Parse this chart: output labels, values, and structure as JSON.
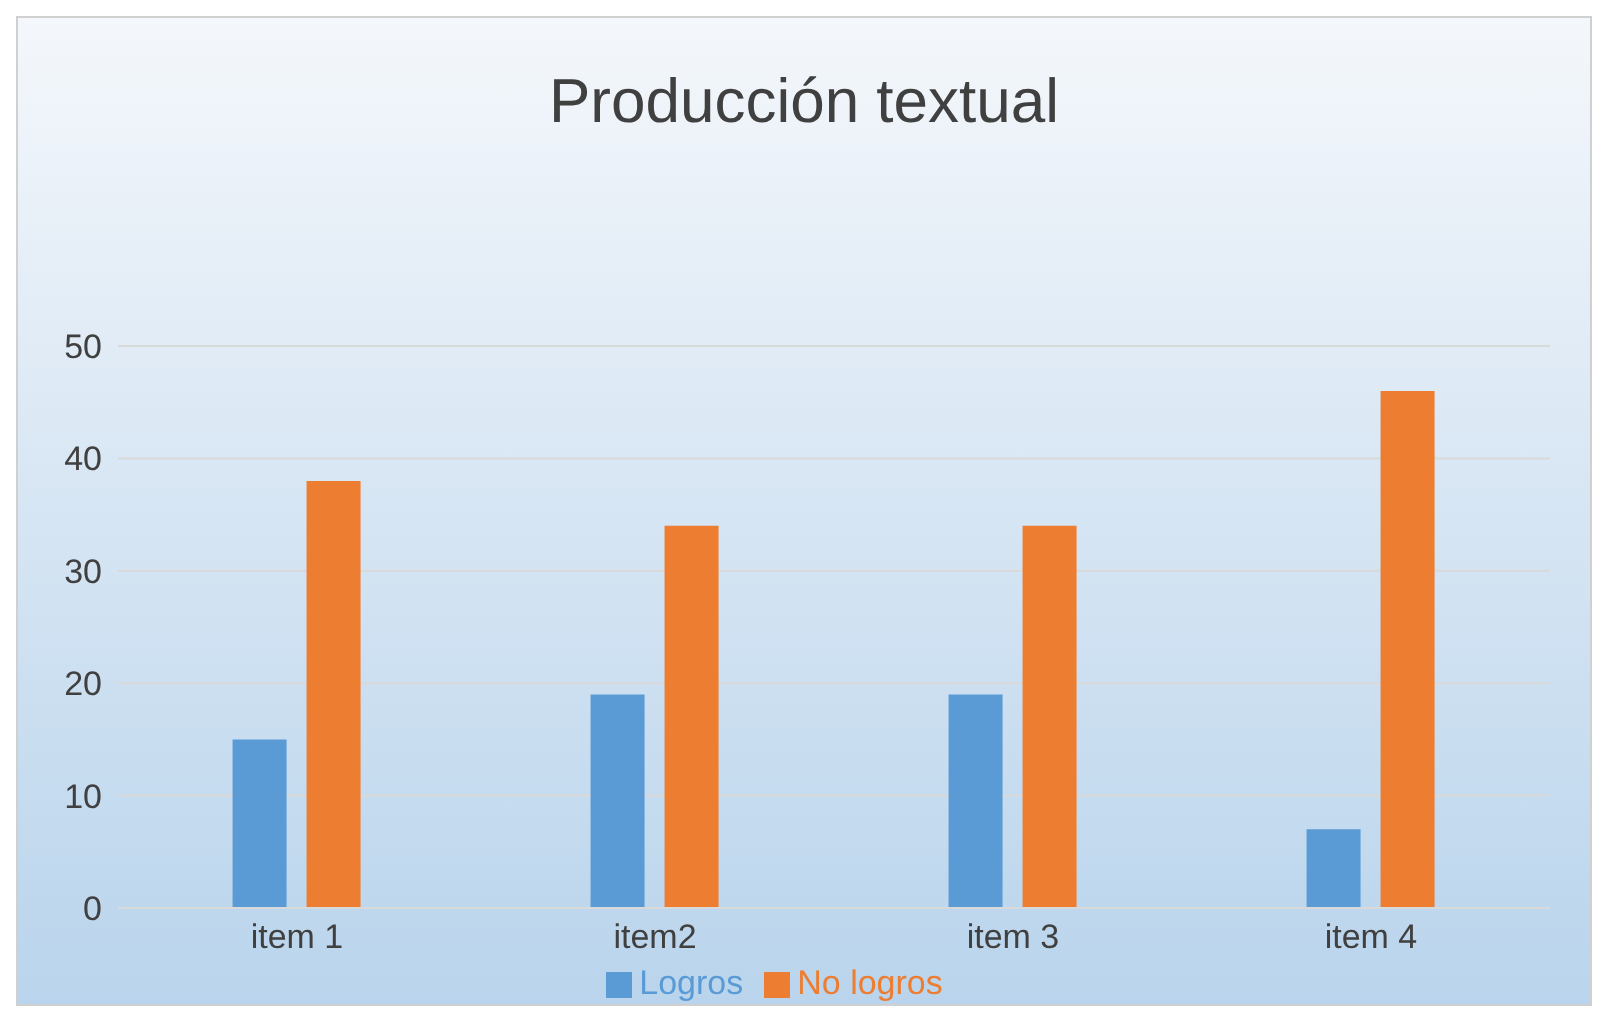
{
  "chart_data": {
    "type": "bar",
    "title": "Producción textual",
    "categories": [
      "item 1",
      "item2",
      "item 3",
      "item 4"
    ],
    "series": [
      {
        "name": "Logros",
        "color": "#5b9bd5",
        "values": [
          15,
          19,
          19,
          7
        ]
      },
      {
        "name": "No logros",
        "color": "#ed7d31",
        "values": [
          38,
          34,
          34,
          46
        ]
      }
    ],
    "ylim": [
      0,
      50
    ],
    "yticks": [
      0,
      10,
      20,
      30,
      40,
      50
    ],
    "grid": "y",
    "legend": "bottom"
  }
}
